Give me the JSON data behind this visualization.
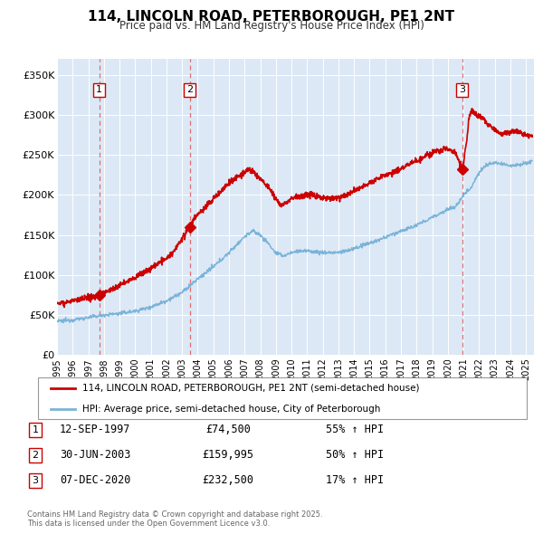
{
  "title": "114, LINCOLN ROAD, PETERBOROUGH, PE1 2NT",
  "subtitle": "Price paid vs. HM Land Registry's House Price Index (HPI)",
  "title_fontsize": 11,
  "subtitle_fontsize": 9,
  "background_color": "#ffffff",
  "plot_bg_color": "#dce8f5",
  "ylim": [
    0,
    370000
  ],
  "yticks": [
    0,
    50000,
    100000,
    150000,
    200000,
    250000,
    300000,
    350000
  ],
  "ytick_labels": [
    "£0",
    "£50K",
    "£100K",
    "£150K",
    "£200K",
    "£250K",
    "£300K",
    "£350K"
  ],
  "xlim_start": 1995.0,
  "xlim_end": 2025.5,
  "grid_color": "#ffffff",
  "sale_color": "#cc0000",
  "hpi_color": "#7ab3d8",
  "sale_label": "114, LINCOLN ROAD, PETERBOROUGH, PE1 2NT (semi-detached house)",
  "hpi_label": "HPI: Average price, semi-detached house, City of Peterborough",
  "purchases": [
    {
      "date": 1997.705,
      "price": 74500,
      "label": "1"
    },
    {
      "date": 2003.496,
      "price": 159995,
      "label": "2"
    },
    {
      "date": 2020.924,
      "price": 232500,
      "label": "3"
    }
  ],
  "vline_dates": [
    1997.705,
    2003.496,
    2020.924
  ],
  "table_rows": [
    {
      "num": "1",
      "date": "12-SEP-1997",
      "price": "£74,500",
      "hpi": "55% ↑ HPI"
    },
    {
      "num": "2",
      "date": "30-JUN-2003",
      "price": "£159,995",
      "hpi": "50% ↑ HPI"
    },
    {
      "num": "3",
      "date": "07-DEC-2020",
      "price": "£232,500",
      "hpi": "17% ↑ HPI"
    }
  ],
  "footer": "Contains HM Land Registry data © Crown copyright and database right 2025.\nThis data is licensed under the Open Government Licence v3.0."
}
